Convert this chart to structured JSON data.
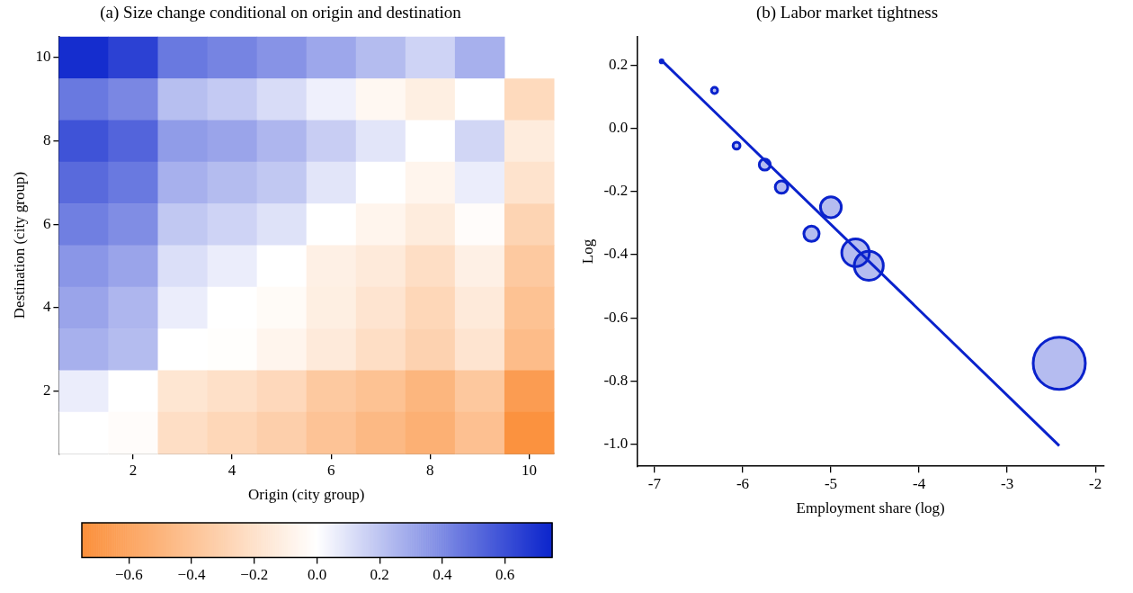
{
  "chart_data": [
    {
      "type": "heatmap",
      "title": "(a) Size change conditional on origin and destination",
      "xlabel": "Origin (city group)",
      "ylabel": "Destination (city group)",
      "categories": [
        null,
        "2",
        null,
        "4",
        null,
        "6",
        null,
        "8",
        null,
        "10"
      ],
      "y_categories": [
        "10",
        null,
        "8",
        null,
        "6",
        null,
        "4",
        null,
        "2",
        null
      ],
      "cells": [
        [
          0.72,
          0.65,
          0.46,
          0.42,
          0.37,
          0.3,
          0.23,
          0.15,
          0.27,
          null
        ],
        [
          0.46,
          0.41,
          0.22,
          0.18,
          0.12,
          0.05,
          -0.05,
          -0.11,
          0,
          -0.25
        ],
        [
          0.59,
          0.53,
          0.34,
          0.31,
          0.25,
          0.17,
          0.09,
          0,
          0.14,
          -0.13
        ],
        [
          0.51,
          0.46,
          0.27,
          0.23,
          0.19,
          0.09,
          0,
          -0.07,
          0.06,
          -0.19
        ],
        [
          0.44,
          0.39,
          0.19,
          0.15,
          0.1,
          0,
          -0.07,
          -0.13,
          -0.02,
          -0.29
        ],
        [
          0.36,
          0.31,
          0.11,
          0.06,
          0,
          -0.1,
          -0.14,
          -0.22,
          -0.1,
          -0.36
        ],
        [
          0.31,
          0.25,
          0.06,
          0,
          -0.03,
          -0.11,
          -0.18,
          -0.27,
          -0.14,
          -0.41
        ],
        [
          0.27,
          0.23,
          0,
          -0.01,
          -0.07,
          -0.14,
          -0.22,
          -0.3,
          -0.18,
          -0.45
        ],
        [
          0.06,
          0,
          -0.17,
          -0.21,
          -0.26,
          -0.36,
          -0.41,
          -0.49,
          -0.37,
          -0.66
        ],
        [
          0,
          -0.02,
          -0.22,
          -0.27,
          -0.32,
          -0.4,
          -0.47,
          -0.53,
          -0.42,
          -0.73
        ]
      ],
      "clim": [
        -0.75,
        0.75
      ],
      "cticks": [
        {
          "value": -0.6,
          "label": "−0.6"
        },
        {
          "value": -0.4,
          "label": "−0.4"
        },
        {
          "value": -0.2,
          "label": "−0.2"
        },
        {
          "value": 0,
          "label": "0.0"
        },
        {
          "value": 0.2,
          "label": "0.2"
        },
        {
          "value": 0.4,
          "label": "0.4"
        },
        {
          "value": 0.6,
          "label": "0.6"
        }
      ]
    },
    {
      "type": "bubble",
      "title": "(b) Labor market tightness",
      "xlabel": "Employment share (log)",
      "ylabel": "Log",
      "xlim": [
        -7.2,
        -1.9
      ],
      "xticks": [
        -7,
        -6,
        -5,
        -4,
        -3,
        -2
      ],
      "ylim": [
        -1.07,
        0.29
      ],
      "yticks": [
        {
          "value": 0.2,
          "label": "0.2"
        },
        {
          "value": 0,
          "label": "0.0"
        },
        {
          "value": -0.2,
          "label": "-0.2"
        },
        {
          "value": -0.4,
          "label": "-0.4"
        },
        {
          "value": -0.6,
          "label": "-0.6"
        },
        {
          "value": -0.8,
          "label": "-0.8"
        },
        {
          "value": -1,
          "label": "-1.0"
        }
      ],
      "grid": false,
      "legend": false,
      "series": [
        {
          "type": "bubble",
          "color": "#0a22cc",
          "x": [
            -6.92,
            -6.32,
            -6.07,
            -5.75,
            -5.56,
            -5.22,
            -5.0,
            -4.72,
            -4.57,
            -2.41
          ],
          "values": [
            0.212,
            0.12,
            -0.055,
            -0.115,
            -0.186,
            -0.334,
            -0.25,
            -0.394,
            -0.435,
            -0.744
          ],
          "sizes": [
            0.003,
            0.014,
            0.018,
            0.045,
            0.058,
            0.086,
            0.16,
            0.28,
            0.31,
            1
          ]
        },
        {
          "type": "line",
          "color": "#0a22cc",
          "x": [
            -6.92,
            -2.41
          ],
          "values": [
            0.215,
            -1.005
          ]
        }
      ]
    }
  ]
}
